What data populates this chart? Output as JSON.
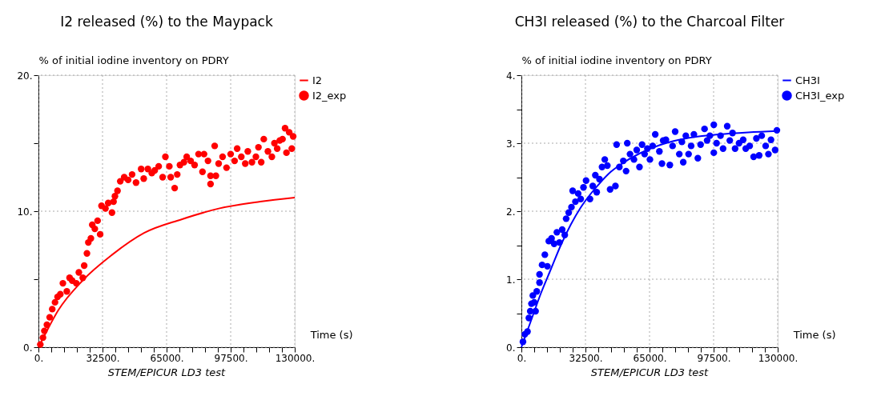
{
  "chart_data": [
    {
      "type": "line",
      "title": "I2 released (%) to the Maypack",
      "ylabel": "% of initial iodine inventory on PDRY",
      "xlabel": "Time (s)",
      "annotations": [
        "STEM/EPICUR LD3 test"
      ],
      "xlim": [
        0,
        130000
      ],
      "ylim": [
        0,
        20
      ],
      "xticks": [
        {
          "value": 0,
          "label": "0."
        },
        {
          "value": 6500,
          "label": null
        },
        {
          "value": 13000,
          "label": null
        },
        {
          "value": 19500,
          "label": null
        },
        {
          "value": 26000,
          "label": null
        },
        {
          "value": 32500,
          "label": "32500."
        },
        {
          "value": 39000,
          "label": null
        },
        {
          "value": 45500,
          "label": null
        },
        {
          "value": 52000,
          "label": null
        },
        {
          "value": 58500,
          "label": null
        },
        {
          "value": 65000,
          "label": "65000."
        },
        {
          "value": 71500,
          "label": null
        },
        {
          "value": 78000,
          "label": null
        },
        {
          "value": 84500,
          "label": null
        },
        {
          "value": 91000,
          "label": null
        },
        {
          "value": 97500,
          "label": "97500."
        },
        {
          "value": 104000,
          "label": null
        },
        {
          "value": 110500,
          "label": null
        },
        {
          "value": 117000,
          "label": null
        },
        {
          "value": 123500,
          "label": null
        },
        {
          "value": 130000,
          "label": "130000."
        }
      ],
      "yticks": [
        {
          "value": 0,
          "label": "0."
        },
        {
          "value": 5,
          "label": null
        },
        {
          "value": 10,
          "label": "10."
        },
        {
          "value": 15,
          "label": null
        },
        {
          "value": 20,
          "label": "20."
        }
      ],
      "grid": true,
      "legend": "top right",
      "series": [
        {
          "name": "I2",
          "type": "line",
          "color": "#ff0000",
          "x": [
            0,
            5000,
            10000,
            22400,
            37400,
            53600,
            72600,
            91500,
            112500,
            130000
          ],
          "values": [
            0,
            1.4,
            2.7,
            4.9,
            6.8,
            8.4,
            9.4,
            10.2,
            10.7,
            11.0
          ]
        },
        {
          "name": "I2_exp",
          "type": "scatter",
          "color": "#ff0000",
          "x": [
            950,
            2300,
            3000,
            4300,
            5700,
            7000,
            8400,
            9700,
            11100,
            12400,
            14400,
            15800,
            17100,
            19200,
            20500,
            22500,
            23200,
            24600,
            25300,
            26600,
            27300,
            28600,
            30000,
            31300,
            32000,
            34000,
            35400,
            37300,
            38100,
            38800,
            40100,
            41500,
            43500,
            45500,
            47500,
            49500,
            52100,
            53400,
            55500,
            57500,
            59000,
            61000,
            63000,
            64400,
            66400,
            67100,
            69100,
            70400,
            71800,
            73800,
            75200,
            77200,
            79200,
            81200,
            83200,
            84000,
            86000,
            87300,
            87300,
            89400,
            90000,
            91400,
            93400,
            95400,
            97500,
            99500,
            100800,
            102900,
            104900,
            106200,
            108300,
            110300,
            111600,
            113000,
            114300,
            116400,
            118400,
            119700,
            121100,
            122400,
            123800,
            125100,
            125800,
            127200,
            128500,
            129200
          ],
          "values": [
            0.2,
            0.7,
            1.2,
            1.65,
            2.2,
            2.8,
            3.3,
            3.7,
            3.9,
            4.7,
            4.1,
            5.1,
            4.9,
            4.7,
            5.5,
            5.1,
            6.0,
            6.9,
            7.7,
            8.0,
            9.0,
            8.7,
            9.3,
            8.3,
            10.4,
            10.2,
            10.6,
            9.9,
            10.7,
            11.1,
            11.5,
            12.2,
            12.5,
            12.3,
            12.7,
            12.1,
            13.1,
            12.4,
            13.1,
            12.8,
            13.0,
            13.3,
            12.5,
            14.0,
            13.3,
            12.5,
            11.7,
            12.7,
            13.4,
            13.6,
            14.0,
            13.7,
            13.4,
            14.2,
            12.9,
            14.2,
            13.7,
            12.0,
            12.6,
            14.8,
            12.6,
            13.5,
            14.0,
            13.2,
            14.2,
            13.7,
            14.6,
            14.0,
            13.5,
            14.4,
            13.6,
            14.0,
            14.7,
            13.6,
            15.3,
            14.4,
            14.0,
            15.0,
            14.6,
            15.2,
            15.3,
            16.1,
            14.3,
            15.8,
            14.6,
            15.5
          ]
        }
      ]
    },
    {
      "type": "line",
      "title": "CH3I released (%) to the Charcoal Filter",
      "ylabel": "% of initial iodine inventory on PDRY",
      "xlabel": "Time (s)",
      "annotations": [
        "STEM/EPICUR LD3 test"
      ],
      "xlim": [
        0,
        130000
      ],
      "ylim": [
        0,
        4
      ],
      "xticks": [
        {
          "value": 0,
          "label": "0."
        },
        {
          "value": 6500,
          "label": null
        },
        {
          "value": 13000,
          "label": null
        },
        {
          "value": 19500,
          "label": null
        },
        {
          "value": 26000,
          "label": null
        },
        {
          "value": 32500,
          "label": "32500."
        },
        {
          "value": 39000,
          "label": null
        },
        {
          "value": 45500,
          "label": null
        },
        {
          "value": 52000,
          "label": null
        },
        {
          "value": 58500,
          "label": null
        },
        {
          "value": 65000,
          "label": "65000."
        },
        {
          "value": 71500,
          "label": null
        },
        {
          "value": 78000,
          "label": null
        },
        {
          "value": 84500,
          "label": null
        },
        {
          "value": 91000,
          "label": null
        },
        {
          "value": 97500,
          "label": "97500."
        },
        {
          "value": 104000,
          "label": null
        },
        {
          "value": 110500,
          "label": null
        },
        {
          "value": 117000,
          "label": null
        },
        {
          "value": 123500,
          "label": null
        },
        {
          "value": 130000,
          "label": "130000."
        }
      ],
      "yticks": [
        {
          "value": 0,
          "label": "0."
        },
        {
          "value": 0.5,
          "label": null
        },
        {
          "value": 1,
          "label": "1."
        },
        {
          "value": 1.5,
          "label": null
        },
        {
          "value": 2,
          "label": "2."
        },
        {
          "value": 2.5,
          "label": null
        },
        {
          "value": 3,
          "label": "3."
        },
        {
          "value": 3.5,
          "label": null
        },
        {
          "value": 4,
          "label": "4."
        }
      ],
      "grid": true,
      "legend": "top right",
      "series": [
        {
          "name": "CH3I",
          "type": "line",
          "color": "#0000ff",
          "x": [
            0,
            5000,
            10000,
            15000,
            20000,
            25000,
            30000,
            35000,
            40000,
            45000,
            50000,
            60000,
            70000,
            80000,
            90000,
            100000,
            115000,
            130000
          ],
          "values": [
            0,
            0.4,
            0.8,
            1.15,
            1.5,
            1.8,
            2.05,
            2.25,
            2.42,
            2.57,
            2.68,
            2.85,
            2.97,
            3.05,
            3.1,
            3.13,
            3.16,
            3.18
          ]
        },
        {
          "name": "CH3I_exp",
          "type": "scatter",
          "color": "#0000ff",
          "x": [
            800,
            1750,
            3100,
            3800,
            4500,
            5100,
            5800,
            6500,
            7200,
            7800,
            9200,
            9200,
            10500,
            11900,
            13200,
            13900,
            15300,
            16600,
            18000,
            19300,
            20700,
            22000,
            22700,
            24000,
            25400,
            26000,
            27400,
            28800,
            30100,
            31500,
            32800,
            34800,
            36200,
            37500,
            38200,
            39600,
            40900,
            42300,
            43600,
            45000,
            47700,
            48300,
            49700,
            51700,
            53100,
            53700,
            55100,
            57100,
            58500,
            59900,
            61200,
            62500,
            63900,
            65200,
            66600,
            67900,
            70000,
            71300,
            71900,
            73300,
            75300,
            76700,
            78000,
            80100,
            81400,
            82100,
            83400,
            84800,
            86100,
            87500,
            89500,
            90900,
            92900,
            94200,
            95600,
            97600,
            97600,
            99000,
            101000,
            102300,
            104400,
            105700,
            107100,
            108400,
            110400,
            112500,
            113800,
            115800,
            117800,
            119200,
            120600,
            121900,
            123900,
            125300,
            126600,
            128700,
            129600
          ],
          "values": [
            0.08,
            0.19,
            0.23,
            0.43,
            0.53,
            0.64,
            0.76,
            0.66,
            0.53,
            0.82,
            0.95,
            1.07,
            1.21,
            1.36,
            1.19,
            1.56,
            1.6,
            1.52,
            1.69,
            1.54,
            1.73,
            1.65,
            1.89,
            1.98,
            2.06,
            2.3,
            2.14,
            2.26,
            2.18,
            2.35,
            2.45,
            2.18,
            2.37,
            2.53,
            2.28,
            2.47,
            2.65,
            2.76,
            2.67,
            2.32,
            2.37,
            2.98,
            2.65,
            2.74,
            2.59,
            3.0,
            2.84,
            2.76,
            2.9,
            2.65,
            2.98,
            2.84,
            2.92,
            2.76,
            2.96,
            3.13,
            2.88,
            2.7,
            3.04,
            3.05,
            2.68,
            2.96,
            3.17,
            2.84,
            3.02,
            2.72,
            3.11,
            2.84,
            2.96,
            3.13,
            2.78,
            2.98,
            3.21,
            3.04,
            3.11,
            3.27,
            2.86,
            3.0,
            3.11,
            2.92,
            3.25,
            3.04,
            3.15,
            2.92,
            3.0,
            3.05,
            2.92,
            2.96,
            2.8,
            3.07,
            2.82,
            3.11,
            2.96,
            2.84,
            3.05,
            2.9,
            3.19
          ]
        }
      ]
    }
  ]
}
